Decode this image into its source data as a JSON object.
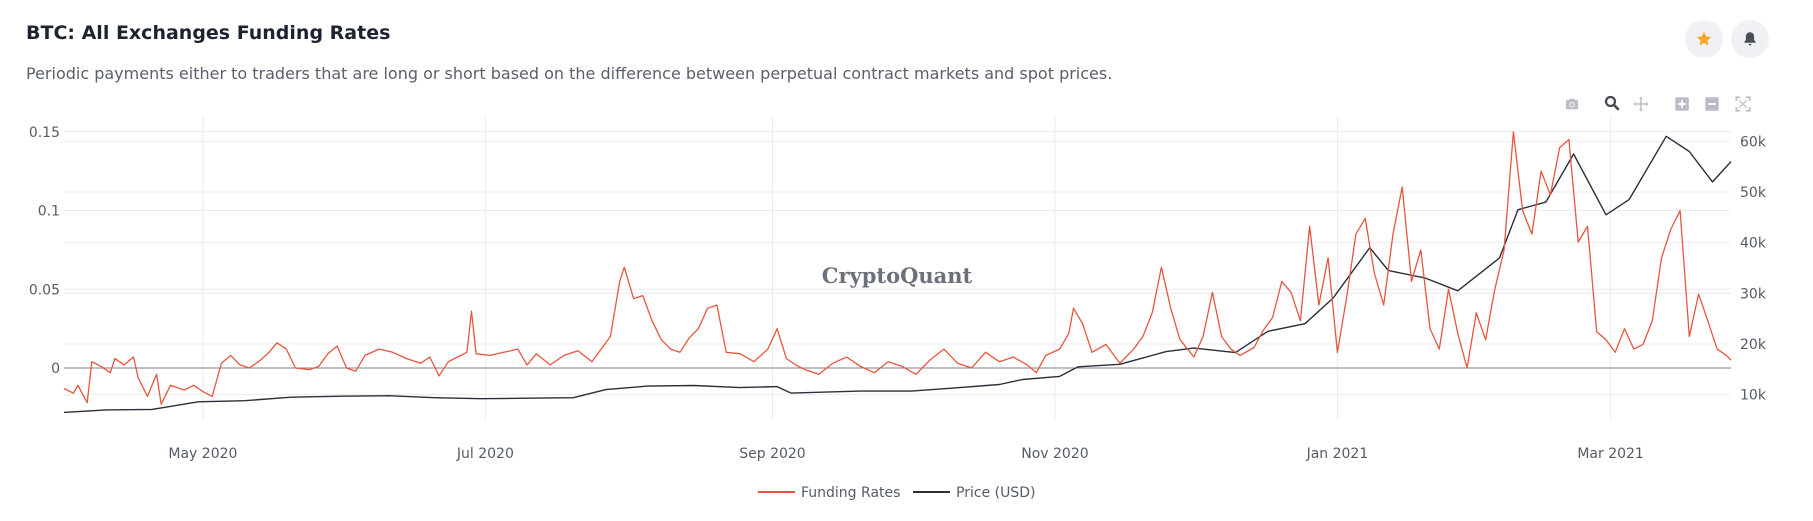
{
  "header": {
    "title": "BTC: All Exchanges Funding Rates",
    "subtitle": "Periodic payments either to traders that are long or short based on the difference between perpetual contract markets and spot prices."
  },
  "actions": {
    "favorite_icon": "star-icon",
    "notify_icon": "bell-icon"
  },
  "modebar": [
    "camera-icon",
    "zoom-icon",
    "pan-icon",
    "zoom-in-icon",
    "zoom-out-icon",
    "autoscale-icon"
  ],
  "watermark": "CryptoQuant",
  "colors": {
    "funding": "#e8553f",
    "price": "#2b2f3a",
    "accent": "#f5a623"
  },
  "chart_data": {
    "type": "line",
    "x_range": [
      "2020-04-01",
      "2021-03-27"
    ],
    "y_left": {
      "range": [
        -0.033,
        0.16
      ],
      "ticks": [
        0,
        0.05,
        0.1,
        0.15
      ],
      "tick_labels": [
        "0",
        "0.05",
        "0.1",
        "0.15"
      ]
    },
    "y_right": {
      "range": [
        5000,
        65000
      ],
      "ticks": [
        10000,
        20000,
        30000,
        40000,
        50000,
        60000
      ],
      "tick_labels": [
        "10k",
        "20k",
        "30k",
        "40k",
        "50k",
        "60k"
      ]
    },
    "x_ticks": [
      {
        "date": "2020-05-01",
        "label": "May 2020"
      },
      {
        "date": "2020-07-01",
        "label": "Jul 2020"
      },
      {
        "date": "2020-09-01",
        "label": "Sep 2020"
      },
      {
        "date": "2020-11-01",
        "label": "Nov 2020"
      },
      {
        "date": "2021-01-01",
        "label": "Jan 2021"
      },
      {
        "date": "2021-03-01",
        "label": "Mar 2021"
      }
    ],
    "grid": true,
    "legend_position": "bottom-center",
    "series": [
      {
        "name": "Funding Rates",
        "axis": "left",
        "points": [
          [
            "2020-04-01",
            -0.013
          ],
          [
            "2020-04-03",
            -0.016
          ],
          [
            "2020-04-04",
            -0.011
          ],
          [
            "2020-04-06",
            -0.022
          ],
          [
            "2020-04-07",
            0.004
          ],
          [
            "2020-04-09",
            0.001
          ],
          [
            "2020-04-11",
            -0.003
          ],
          [
            "2020-04-12",
            0.006
          ],
          [
            "2020-04-14",
            0.002
          ],
          [
            "2020-04-16",
            0.007
          ],
          [
            "2020-04-17",
            -0.006
          ],
          [
            "2020-04-19",
            -0.018
          ],
          [
            "2020-04-21",
            -0.004
          ],
          [
            "2020-04-22",
            -0.023
          ],
          [
            "2020-04-24",
            -0.011
          ],
          [
            "2020-04-27",
            -0.014
          ],
          [
            "2020-04-29",
            -0.011
          ],
          [
            "2020-05-01",
            -0.015
          ],
          [
            "2020-05-03",
            -0.018
          ],
          [
            "2020-05-05",
            0.003
          ],
          [
            "2020-05-07",
            0.008
          ],
          [
            "2020-05-09",
            0.002
          ],
          [
            "2020-05-11",
            0.0
          ],
          [
            "2020-05-13",
            0.004
          ],
          [
            "2020-05-15",
            0.009
          ],
          [
            "2020-05-17",
            0.016
          ],
          [
            "2020-05-19",
            0.012
          ],
          [
            "2020-05-21",
            0.0
          ],
          [
            "2020-05-24",
            -0.001
          ],
          [
            "2020-05-26",
            0.001
          ],
          [
            "2020-05-28",
            0.009
          ],
          [
            "2020-05-30",
            0.014
          ],
          [
            "2020-06-01",
            0.0
          ],
          [
            "2020-06-03",
            -0.002
          ],
          [
            "2020-06-05",
            0.008
          ],
          [
            "2020-06-08",
            0.012
          ],
          [
            "2020-06-11",
            0.01
          ],
          [
            "2020-06-14",
            0.006
          ],
          [
            "2020-06-17",
            0.003
          ],
          [
            "2020-06-19",
            0.007
          ],
          [
            "2020-06-21",
            -0.005
          ],
          [
            "2020-06-23",
            0.004
          ],
          [
            "2020-06-25",
            0.007
          ],
          [
            "2020-06-27",
            0.01
          ],
          [
            "2020-06-28",
            0.036
          ],
          [
            "2020-06-29",
            0.009
          ],
          [
            "2020-07-02",
            0.008
          ],
          [
            "2020-07-05",
            0.01
          ],
          [
            "2020-07-08",
            0.012
          ],
          [
            "2020-07-10",
            0.002
          ],
          [
            "2020-07-12",
            0.009
          ],
          [
            "2020-07-15",
            0.002
          ],
          [
            "2020-07-18",
            0.008
          ],
          [
            "2020-07-21",
            0.011
          ],
          [
            "2020-07-24",
            0.004
          ],
          [
            "2020-07-26",
            0.012
          ],
          [
            "2020-07-28",
            0.02
          ],
          [
            "2020-07-30",
            0.055
          ],
          [
            "2020-07-31",
            0.064
          ],
          [
            "2020-08-02",
            0.044
          ],
          [
            "2020-08-04",
            0.046
          ],
          [
            "2020-08-06",
            0.03
          ],
          [
            "2020-08-08",
            0.018
          ],
          [
            "2020-08-10",
            0.012
          ],
          [
            "2020-08-12",
            0.01
          ],
          [
            "2020-08-14",
            0.019
          ],
          [
            "2020-08-16",
            0.025
          ],
          [
            "2020-08-18",
            0.038
          ],
          [
            "2020-08-20",
            0.04
          ],
          [
            "2020-08-22",
            0.01
          ],
          [
            "2020-08-25",
            0.009
          ],
          [
            "2020-08-28",
            0.004
          ],
          [
            "2020-08-31",
            0.012
          ],
          [
            "2020-09-02",
            0.025
          ],
          [
            "2020-09-04",
            0.006
          ],
          [
            "2020-09-06",
            0.002
          ],
          [
            "2020-09-08",
            -0.001
          ],
          [
            "2020-09-11",
            -0.004
          ],
          [
            "2020-09-14",
            0.003
          ],
          [
            "2020-09-17",
            0.007
          ],
          [
            "2020-09-20",
            0.001
          ],
          [
            "2020-09-23",
            -0.003
          ],
          [
            "2020-09-26",
            0.004
          ],
          [
            "2020-09-29",
            0.001
          ],
          [
            "2020-10-02",
            -0.004
          ],
          [
            "2020-10-05",
            0.005
          ],
          [
            "2020-10-08",
            0.012
          ],
          [
            "2020-10-11",
            0.003
          ],
          [
            "2020-10-14",
            0.0
          ],
          [
            "2020-10-17",
            0.01
          ],
          [
            "2020-10-20",
            0.004
          ],
          [
            "2020-10-23",
            0.007
          ],
          [
            "2020-10-26",
            0.002
          ],
          [
            "2020-10-28",
            -0.003
          ],
          [
            "2020-10-30",
            0.008
          ],
          [
            "2020-11-02",
            0.012
          ],
          [
            "2020-11-04",
            0.022
          ],
          [
            "2020-11-05",
            0.038
          ],
          [
            "2020-11-07",
            0.028
          ],
          [
            "2020-11-09",
            0.01
          ],
          [
            "2020-11-12",
            0.015
          ],
          [
            "2020-11-15",
            0.003
          ],
          [
            "2020-11-18",
            0.012
          ],
          [
            "2020-11-20",
            0.02
          ],
          [
            "2020-11-22",
            0.035
          ],
          [
            "2020-11-24",
            0.064
          ],
          [
            "2020-11-26",
            0.038
          ],
          [
            "2020-11-28",
            0.018
          ],
          [
            "2020-12-01",
            0.007
          ],
          [
            "2020-12-03",
            0.02
          ],
          [
            "2020-12-05",
            0.048
          ],
          [
            "2020-12-07",
            0.02
          ],
          [
            "2020-12-09",
            0.012
          ],
          [
            "2020-12-11",
            0.008
          ],
          [
            "2020-12-14",
            0.013
          ],
          [
            "2020-12-16",
            0.024
          ],
          [
            "2020-12-18",
            0.032
          ],
          [
            "2020-12-20",
            0.055
          ],
          [
            "2020-12-22",
            0.048
          ],
          [
            "2020-12-24",
            0.03
          ],
          [
            "2020-12-26",
            0.09
          ],
          [
            "2020-12-28",
            0.04
          ],
          [
            "2020-12-30",
            0.07
          ],
          [
            "2021-01-01",
            0.01
          ],
          [
            "2021-01-03",
            0.045
          ],
          [
            "2021-01-05",
            0.085
          ],
          [
            "2021-01-07",
            0.095
          ],
          [
            "2021-01-09",
            0.06
          ],
          [
            "2021-01-11",
            0.04
          ],
          [
            "2021-01-13",
            0.085
          ],
          [
            "2021-01-15",
            0.115
          ],
          [
            "2021-01-17",
            0.055
          ],
          [
            "2021-01-19",
            0.075
          ],
          [
            "2021-01-21",
            0.025
          ],
          [
            "2021-01-23",
            0.012
          ],
          [
            "2021-01-25",
            0.05
          ],
          [
            "2021-01-27",
            0.022
          ],
          [
            "2021-01-29",
            0.0
          ],
          [
            "2021-01-31",
            0.035
          ],
          [
            "2021-02-02",
            0.018
          ],
          [
            "2021-02-04",
            0.05
          ],
          [
            "2021-02-06",
            0.075
          ],
          [
            "2021-02-08",
            0.15
          ],
          [
            "2021-02-10",
            0.1
          ],
          [
            "2021-02-12",
            0.085
          ],
          [
            "2021-02-14",
            0.125
          ],
          [
            "2021-02-16",
            0.11
          ],
          [
            "2021-02-18",
            0.14
          ],
          [
            "2021-02-20",
            0.145
          ],
          [
            "2021-02-22",
            0.08
          ],
          [
            "2021-02-24",
            0.09
          ],
          [
            "2021-02-26",
            0.023
          ],
          [
            "2021-02-28",
            0.018
          ],
          [
            "2021-03-02",
            0.01
          ],
          [
            "2021-03-04",
            0.025
          ],
          [
            "2021-03-06",
            0.012
          ],
          [
            "2021-03-08",
            0.015
          ],
          [
            "2021-03-10",
            0.03
          ],
          [
            "2021-03-12",
            0.07
          ],
          [
            "2021-03-14",
            0.088
          ],
          [
            "2021-03-16",
            0.1
          ],
          [
            "2021-03-18",
            0.02
          ],
          [
            "2021-03-20",
            0.047
          ],
          [
            "2021-03-22",
            0.03
          ],
          [
            "2021-03-24",
            0.012
          ],
          [
            "2021-03-26",
            0.008
          ],
          [
            "2021-03-27",
            0.005
          ]
        ]
      },
      {
        "name": "Price (USD)",
        "axis": "right",
        "points": [
          [
            "2020-04-01",
            6500
          ],
          [
            "2020-04-10",
            7000
          ],
          [
            "2020-04-20",
            7100
          ],
          [
            "2020-04-30",
            8600
          ],
          [
            "2020-05-10",
            8800
          ],
          [
            "2020-05-20",
            9500
          ],
          [
            "2020-05-31",
            9700
          ],
          [
            "2020-06-10",
            9800
          ],
          [
            "2020-06-20",
            9400
          ],
          [
            "2020-06-30",
            9200
          ],
          [
            "2020-07-10",
            9300
          ],
          [
            "2020-07-20",
            9400
          ],
          [
            "2020-07-27",
            11000
          ],
          [
            "2020-08-05",
            11700
          ],
          [
            "2020-08-15",
            11800
          ],
          [
            "2020-08-25",
            11400
          ],
          [
            "2020-09-02",
            11600
          ],
          [
            "2020-09-05",
            10300
          ],
          [
            "2020-09-20",
            10700
          ],
          [
            "2020-10-01",
            10700
          ],
          [
            "2020-10-10",
            11300
          ],
          [
            "2020-10-20",
            12000
          ],
          [
            "2020-10-25",
            13000
          ],
          [
            "2020-11-02",
            13600
          ],
          [
            "2020-11-06",
            15500
          ],
          [
            "2020-11-15",
            16000
          ],
          [
            "2020-11-25",
            18500
          ],
          [
            "2020-12-01",
            19200
          ],
          [
            "2020-12-10",
            18300
          ],
          [
            "2020-12-17",
            22500
          ],
          [
            "2020-12-25",
            24000
          ],
          [
            "2020-12-31",
            29000
          ],
          [
            "2021-01-08",
            39000
          ],
          [
            "2021-01-12",
            34500
          ],
          [
            "2021-01-20",
            33000
          ],
          [
            "2021-01-27",
            30500
          ],
          [
            "2021-02-05",
            37000
          ],
          [
            "2021-02-09",
            46500
          ],
          [
            "2021-02-15",
            48000
          ],
          [
            "2021-02-21",
            57500
          ],
          [
            "2021-02-28",
            45500
          ],
          [
            "2021-03-05",
            48500
          ],
          [
            "2021-03-13",
            61000
          ],
          [
            "2021-03-18",
            58000
          ],
          [
            "2021-03-23",
            52000
          ],
          [
            "2021-03-27",
            56000
          ]
        ]
      }
    ]
  }
}
